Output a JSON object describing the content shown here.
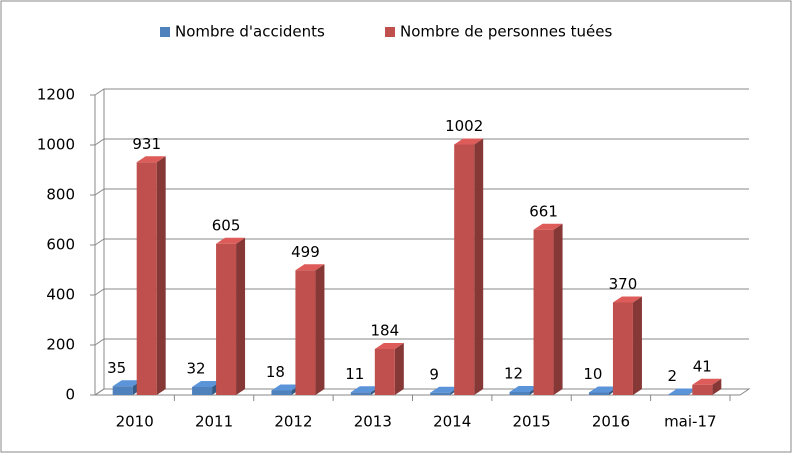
{
  "chart_data": {
    "type": "bar3d",
    "categories": [
      "2010",
      "2011",
      "2012",
      "2013",
      "2014",
      "2015",
      "2016",
      "mai-17"
    ],
    "series": [
      {
        "name": "Nombre d'accidents",
        "color": "#4f81bd",
        "values": [
          35,
          32,
          18,
          11,
          9,
          12,
          10,
          2
        ]
      },
      {
        "name": "Nombre de personnes tuées",
        "color": "#c0504d",
        "values": [
          931,
          605,
          499,
          184,
          1002,
          661,
          370,
          41
        ]
      }
    ],
    "ylim": [
      0,
      1200
    ],
    "yticks": [
      0,
      200,
      400,
      600,
      800,
      1000,
      1200
    ],
    "grid": true,
    "legend": "top"
  }
}
